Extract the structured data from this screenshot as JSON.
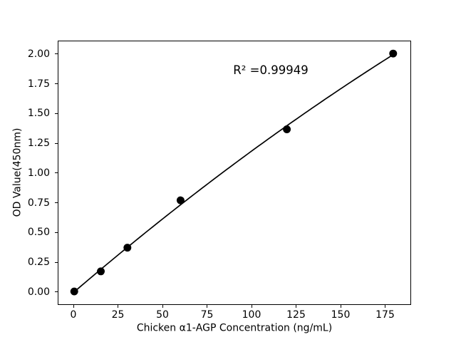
{
  "figure": {
    "background_color": "#ffffff",
    "foreground_color": "#000000"
  },
  "chart_data": {
    "type": "scatter",
    "title": "",
    "xlabel": "Chicken α1-AGP Concentration (ng/mL)",
    "ylabel": "OD Value(450nm)",
    "annotation": "R² =0.99949",
    "r_squared": 0.99949,
    "points": [
      {
        "x": 0,
        "y": 0.0
      },
      {
        "x": 15,
        "y": 0.17
      },
      {
        "x": 30,
        "y": 0.37
      },
      {
        "x": 60,
        "y": 0.77
      },
      {
        "x": 120,
        "y": 1.37
      },
      {
        "x": 180,
        "y": 2.01
      }
    ],
    "fit_line": {
      "type": "quadratic_least_squares",
      "x_start": 0,
      "x_end": 180
    },
    "x_ticks": [
      {
        "value": 0,
        "label": "0"
      },
      {
        "value": 25,
        "label": "25"
      },
      {
        "value": 50,
        "label": "50"
      },
      {
        "value": 75,
        "label": "75"
      },
      {
        "value": 100,
        "label": "100"
      },
      {
        "value": 125,
        "label": "125"
      },
      {
        "value": 150,
        "label": "150"
      },
      {
        "value": 175,
        "label": "175"
      }
    ],
    "y_ticks": [
      {
        "value": 0.0,
        "label": "0.00"
      },
      {
        "value": 0.25,
        "label": "0.25"
      },
      {
        "value": 0.5,
        "label": "0.50"
      },
      {
        "value": 0.75,
        "label": "0.75"
      },
      {
        "value": 1.0,
        "label": "1.00"
      },
      {
        "value": 1.25,
        "label": "1.25"
      },
      {
        "value": 1.5,
        "label": "1.50"
      },
      {
        "value": 1.75,
        "label": "1.75"
      },
      {
        "value": 2.0,
        "label": "2.00"
      }
    ],
    "xlim": [
      -8.8,
      189.6
    ],
    "ylim": [
      -0.108,
      2.1134
    ],
    "grid": false,
    "legend": null,
    "marker_color": "#000000",
    "line_color": "#000000"
  }
}
